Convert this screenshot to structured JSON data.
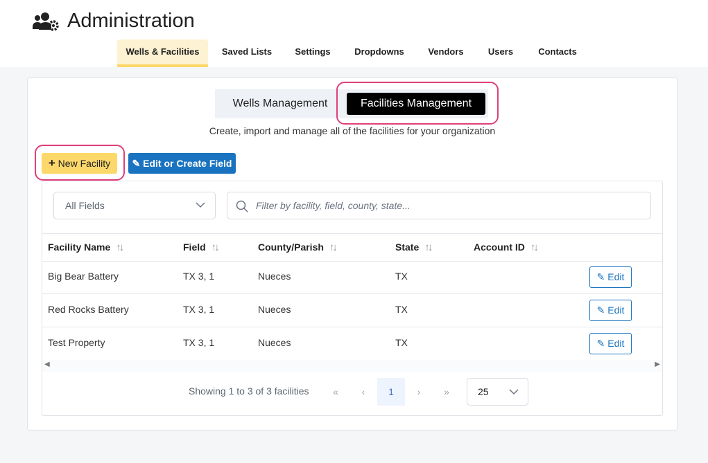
{
  "header": {
    "title": "Administration",
    "icon": "users-gear-icon"
  },
  "nav": {
    "tabs": [
      {
        "label": "Wells & Facilities",
        "active": true
      },
      {
        "label": "Saved Lists"
      },
      {
        "label": "Settings"
      },
      {
        "label": "Dropdowns"
      },
      {
        "label": "Vendors"
      },
      {
        "label": "Users"
      },
      {
        "label": "Contacts"
      }
    ]
  },
  "toggle": {
    "wells": "Wells Management",
    "facilities": "Facilities Management",
    "active": "facilities"
  },
  "subtitle": "Create, import and manage all of the facilities for your organization",
  "actions": {
    "new_facility": "New Facility",
    "edit_field": "Edit or Create Field"
  },
  "filters": {
    "field_select": "All Fields",
    "search_placeholder": "Filter by facility, field, county, state..."
  },
  "table": {
    "columns": [
      "Facility Name",
      "Field",
      "County/Parish",
      "State",
      "Account ID"
    ],
    "rows": [
      [
        "Big Bear Battery",
        "TX 3, 1",
        "Nueces",
        "TX",
        ""
      ],
      [
        "Red Rocks Battery",
        "TX 3, 1",
        "Nueces",
        "TX",
        ""
      ],
      [
        "Test Property",
        "TX 3, 1",
        "Nueces",
        "TX",
        ""
      ]
    ],
    "edit_label": "Edit"
  },
  "pagination": {
    "summary": "Showing 1 to 3 of 3 facilities",
    "current_page": "1",
    "page_size": "25"
  },
  "colors": {
    "accent_yellow": "#fcd86a",
    "primary_blue": "#1a73c0",
    "highlight": "#df3f7a"
  }
}
